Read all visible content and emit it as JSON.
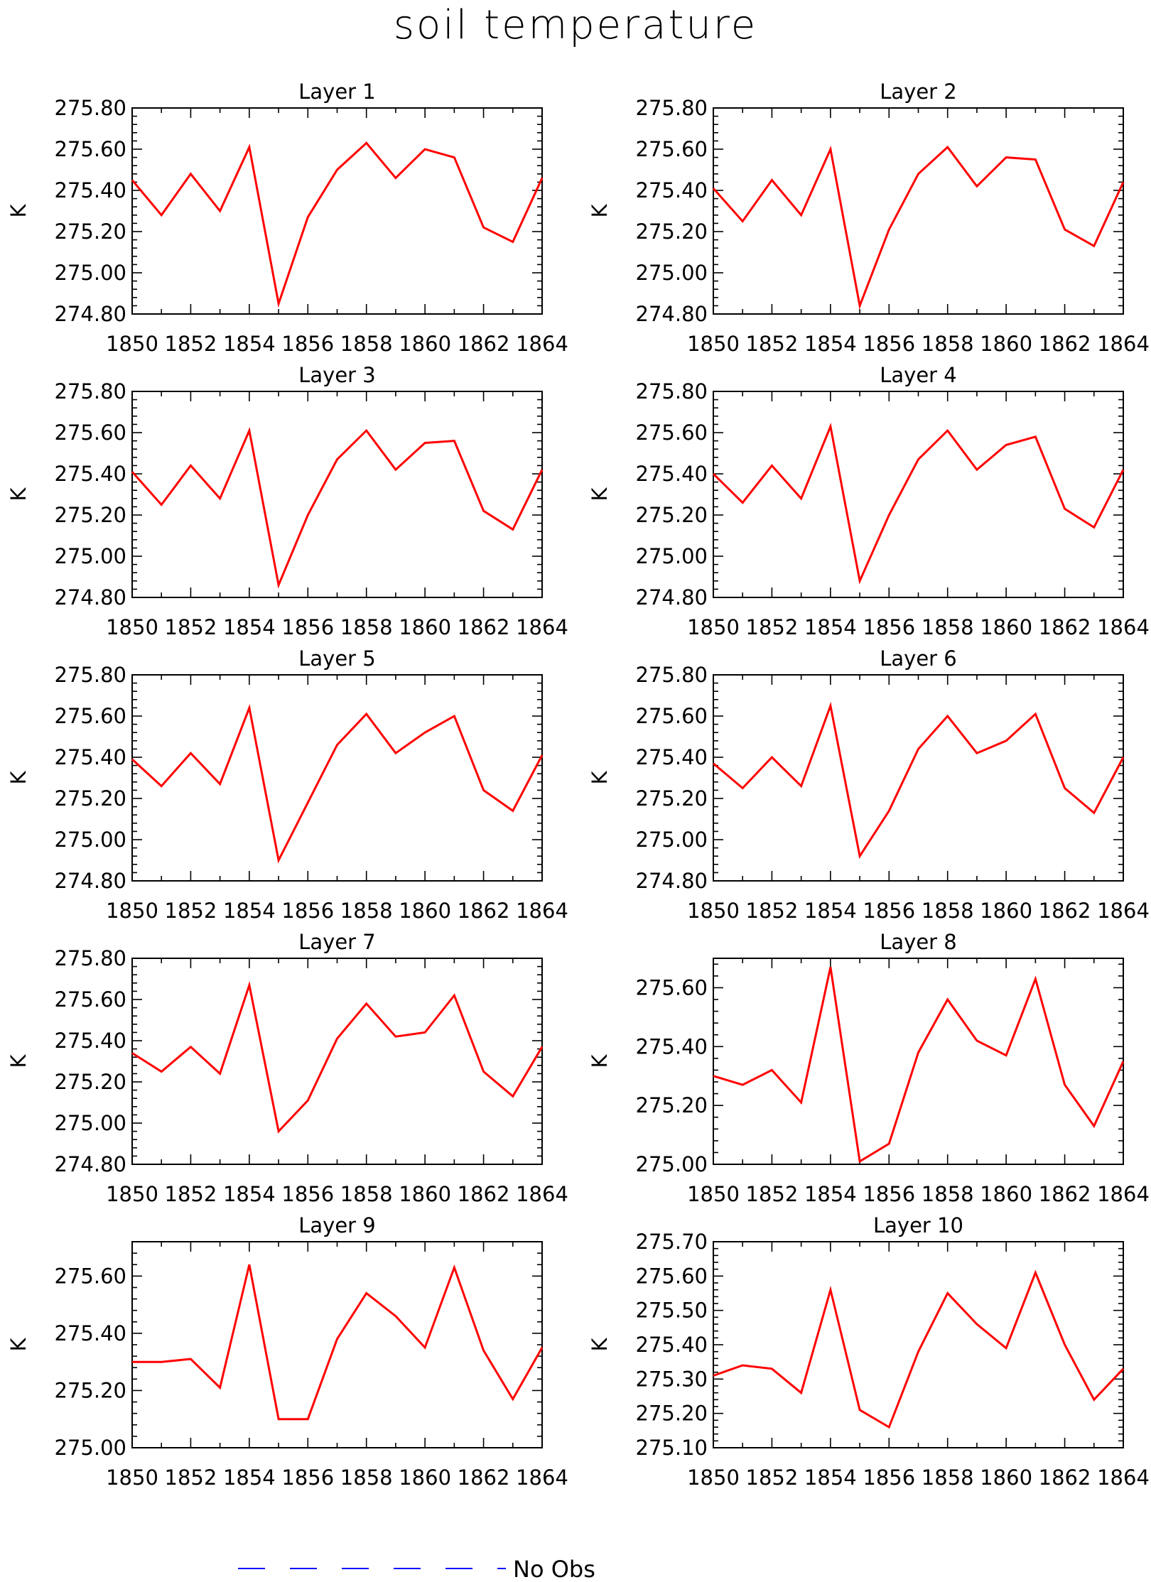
{
  "title": "soil temperature",
  "legend": {
    "label": "No Obs",
    "line_color": "#0000ff",
    "line_style": "dashed"
  },
  "colors": {
    "series": "#ff0000",
    "axes": "#000000"
  },
  "chart_data": [
    {
      "type": "line",
      "title": "Layer 1",
      "ylabel": "K",
      "x": [
        1850,
        1851,
        1852,
        1853,
        1854,
        1855,
        1856,
        1857,
        1858,
        1859,
        1860,
        1861,
        1862,
        1863,
        1864
      ],
      "xticks": [
        1850,
        1852,
        1854,
        1856,
        1858,
        1860,
        1862,
        1864
      ],
      "xlim": [
        1850,
        1864
      ],
      "ylim": [
        274.8,
        275.8
      ],
      "yticks": [
        "274.80",
        "275.00",
        "275.20",
        "275.40",
        "275.60",
        "275.80"
      ],
      "series": [
        {
          "color": "#ff0000",
          "values": [
            275.45,
            275.28,
            275.48,
            275.3,
            275.61,
            274.85,
            275.27,
            275.5,
            275.63,
            275.46,
            275.6,
            275.56,
            275.22,
            275.15,
            275.46
          ]
        }
      ]
    },
    {
      "type": "line",
      "title": "Layer 2",
      "ylabel": "K",
      "x": [
        1850,
        1851,
        1852,
        1853,
        1854,
        1855,
        1856,
        1857,
        1858,
        1859,
        1860,
        1861,
        1862,
        1863,
        1864
      ],
      "xticks": [
        1850,
        1852,
        1854,
        1856,
        1858,
        1860,
        1862,
        1864
      ],
      "xlim": [
        1850,
        1864
      ],
      "ylim": [
        274.8,
        275.8
      ],
      "yticks": [
        "274.80",
        "275.00",
        "275.20",
        "275.40",
        "275.60",
        "275.80"
      ],
      "series": [
        {
          "color": "#ff0000",
          "values": [
            275.41,
            275.25,
            275.45,
            275.28,
            275.6,
            274.84,
            275.21,
            275.48,
            275.61,
            275.42,
            275.56,
            275.55,
            275.21,
            275.13,
            275.44
          ]
        }
      ]
    },
    {
      "type": "line",
      "title": "Layer 3",
      "ylabel": "K",
      "x": [
        1850,
        1851,
        1852,
        1853,
        1854,
        1855,
        1856,
        1857,
        1858,
        1859,
        1860,
        1861,
        1862,
        1863,
        1864
      ],
      "xticks": [
        1850,
        1852,
        1854,
        1856,
        1858,
        1860,
        1862,
        1864
      ],
      "xlim": [
        1850,
        1864
      ],
      "ylim": [
        274.8,
        275.8
      ],
      "yticks": [
        "274.80",
        "275.00",
        "275.20",
        "275.40",
        "275.60",
        "275.80"
      ],
      "series": [
        {
          "color": "#ff0000",
          "values": [
            275.41,
            275.25,
            275.44,
            275.28,
            275.61,
            274.86,
            275.2,
            275.47,
            275.61,
            275.42,
            275.55,
            275.56,
            275.22,
            275.13,
            275.42
          ]
        }
      ]
    },
    {
      "type": "line",
      "title": "Layer 4",
      "ylabel": "K",
      "x": [
        1850,
        1851,
        1852,
        1853,
        1854,
        1855,
        1856,
        1857,
        1858,
        1859,
        1860,
        1861,
        1862,
        1863,
        1864
      ],
      "xticks": [
        1850,
        1852,
        1854,
        1856,
        1858,
        1860,
        1862,
        1864
      ],
      "xlim": [
        1850,
        1864
      ],
      "ylim": [
        274.8,
        275.8
      ],
      "yticks": [
        "274.80",
        "275.00",
        "275.20",
        "275.40",
        "275.60",
        "275.80"
      ],
      "series": [
        {
          "color": "#ff0000",
          "values": [
            275.4,
            275.26,
            275.44,
            275.28,
            275.63,
            274.88,
            275.2,
            275.47,
            275.61,
            275.42,
            275.54,
            275.58,
            275.23,
            275.14,
            275.42
          ]
        }
      ]
    },
    {
      "type": "line",
      "title": "Layer 5",
      "ylabel": "K",
      "x": [
        1850,
        1851,
        1852,
        1853,
        1854,
        1855,
        1856,
        1857,
        1858,
        1859,
        1860,
        1861,
        1862,
        1863,
        1864
      ],
      "xticks": [
        1850,
        1852,
        1854,
        1856,
        1858,
        1860,
        1862,
        1864
      ],
      "xlim": [
        1850,
        1864
      ],
      "ylim": [
        274.8,
        275.8
      ],
      "yticks": [
        "274.80",
        "275.00",
        "275.20",
        "275.40",
        "275.60",
        "275.80"
      ],
      "series": [
        {
          "color": "#ff0000",
          "values": [
            275.39,
            275.26,
            275.42,
            275.27,
            275.64,
            274.9,
            275.18,
            275.46,
            275.61,
            275.42,
            275.52,
            275.6,
            275.24,
            275.14,
            275.41
          ]
        }
      ]
    },
    {
      "type": "line",
      "title": "Layer 6",
      "ylabel": "K",
      "x": [
        1850,
        1851,
        1852,
        1853,
        1854,
        1855,
        1856,
        1857,
        1858,
        1859,
        1860,
        1861,
        1862,
        1863,
        1864
      ],
      "xticks": [
        1850,
        1852,
        1854,
        1856,
        1858,
        1860,
        1862,
        1864
      ],
      "xlim": [
        1850,
        1864
      ],
      "ylim": [
        274.8,
        275.8
      ],
      "yticks": [
        "274.80",
        "275.00",
        "275.20",
        "275.40",
        "275.60",
        "275.80"
      ],
      "series": [
        {
          "color": "#ff0000",
          "values": [
            275.37,
            275.25,
            275.4,
            275.26,
            275.65,
            274.92,
            275.14,
            275.44,
            275.6,
            275.42,
            275.48,
            275.61,
            275.25,
            275.13,
            275.4
          ]
        }
      ]
    },
    {
      "type": "line",
      "title": "Layer 7",
      "ylabel": "K",
      "x": [
        1850,
        1851,
        1852,
        1853,
        1854,
        1855,
        1856,
        1857,
        1858,
        1859,
        1860,
        1861,
        1862,
        1863,
        1864
      ],
      "xticks": [
        1850,
        1852,
        1854,
        1856,
        1858,
        1860,
        1862,
        1864
      ],
      "xlim": [
        1850,
        1864
      ],
      "ylim": [
        274.8,
        275.8
      ],
      "yticks": [
        "274.80",
        "275.00",
        "275.20",
        "275.40",
        "275.60",
        "275.80"
      ],
      "series": [
        {
          "color": "#ff0000",
          "values": [
            275.34,
            275.25,
            275.37,
            275.24,
            275.67,
            274.96,
            275.11,
            275.41,
            275.58,
            275.42,
            275.44,
            275.62,
            275.25,
            275.13,
            275.37
          ]
        }
      ]
    },
    {
      "type": "line",
      "title": "Layer 8",
      "ylabel": "K",
      "x": [
        1850,
        1851,
        1852,
        1853,
        1854,
        1855,
        1856,
        1857,
        1858,
        1859,
        1860,
        1861,
        1862,
        1863,
        1864
      ],
      "xticks": [
        1850,
        1852,
        1854,
        1856,
        1858,
        1860,
        1862,
        1864
      ],
      "xlim": [
        1850,
        1864
      ],
      "ylim": [
        275.0,
        275.7
      ],
      "yticks": [
        "275.00",
        "275.20",
        "275.40",
        "275.60"
      ],
      "series": [
        {
          "color": "#ff0000",
          "values": [
            275.3,
            275.27,
            275.32,
            275.21,
            275.67,
            275.01,
            275.07,
            275.38,
            275.56,
            275.42,
            275.37,
            275.63,
            275.27,
            275.13,
            275.35
          ]
        }
      ]
    },
    {
      "type": "line",
      "title": "Layer 9",
      "ylabel": "K",
      "x": [
        1850,
        1851,
        1852,
        1853,
        1854,
        1855,
        1856,
        1857,
        1858,
        1859,
        1860,
        1861,
        1862,
        1863,
        1864
      ],
      "xticks": [
        1850,
        1852,
        1854,
        1856,
        1858,
        1860,
        1862,
        1864
      ],
      "xlim": [
        1850,
        1864
      ],
      "ylim": [
        275.0,
        275.72
      ],
      "yticks": [
        "275.00",
        "275.20",
        "275.40",
        "275.60"
      ],
      "series": [
        {
          "color": "#ff0000",
          "values": [
            275.3,
            275.3,
            275.31,
            275.21,
            275.64,
            275.1,
            275.1,
            275.38,
            275.54,
            275.46,
            275.35,
            275.63,
            275.34,
            275.17,
            275.35
          ]
        }
      ]
    },
    {
      "type": "line",
      "title": "Layer 10",
      "ylabel": "K",
      "x": [
        1850,
        1851,
        1852,
        1853,
        1854,
        1855,
        1856,
        1857,
        1858,
        1859,
        1860,
        1861,
        1862,
        1863,
        1864
      ],
      "xticks": [
        1850,
        1852,
        1854,
        1856,
        1858,
        1860,
        1862,
        1864
      ],
      "xlim": [
        1850,
        1864
      ],
      "ylim": [
        275.1,
        275.7
      ],
      "yticks": [
        "275.10",
        "275.20",
        "275.30",
        "275.40",
        "275.50",
        "275.60",
        "275.70"
      ],
      "series": [
        {
          "color": "#ff0000",
          "values": [
            275.31,
            275.34,
            275.33,
            275.26,
            275.56,
            275.21,
            275.16,
            275.38,
            275.55,
            275.46,
            275.39,
            275.61,
            275.4,
            275.24,
            275.33
          ]
        }
      ]
    }
  ]
}
